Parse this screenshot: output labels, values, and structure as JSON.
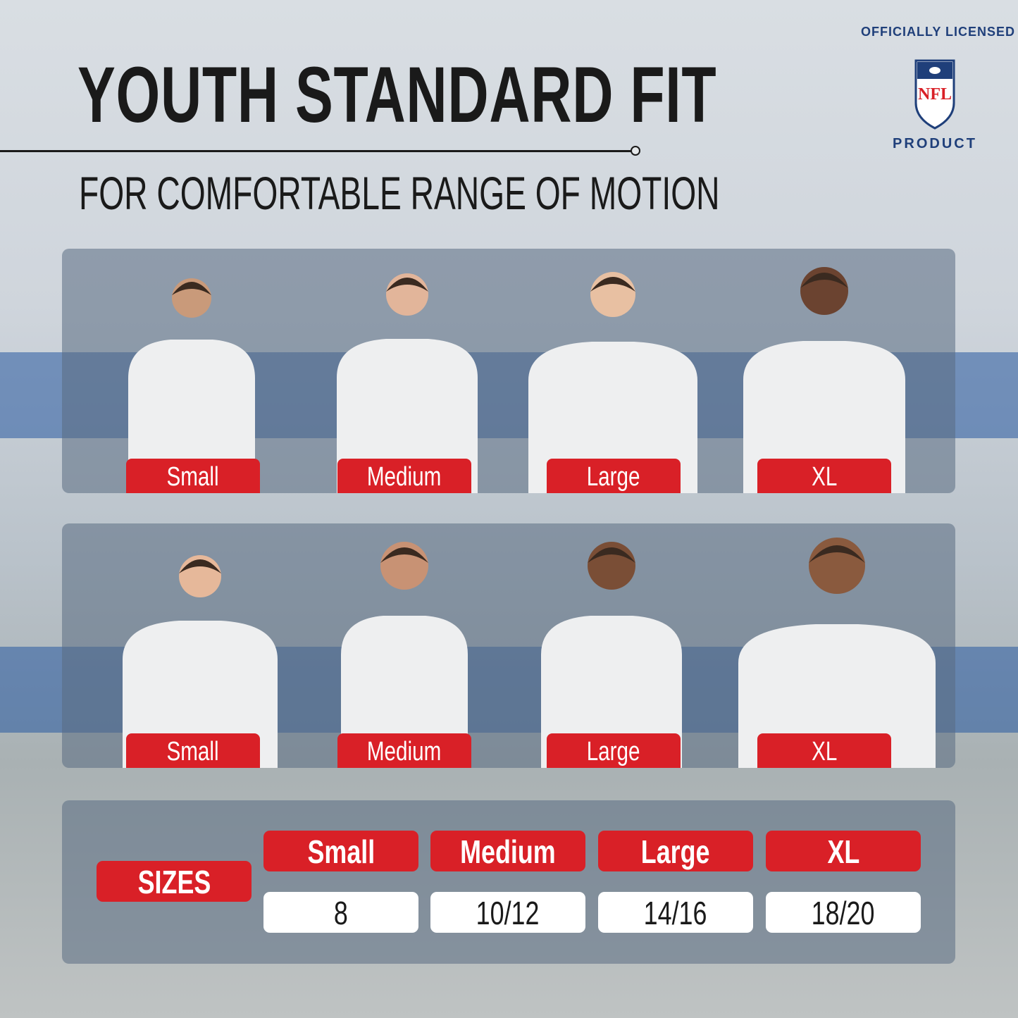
{
  "title": "YOUTH STANDARD FIT",
  "subtitle": "FOR COMFORTABLE RANGE OF MOTION",
  "badge": {
    "text_top": "OFFICIALLY LICENSED",
    "text_bottom": "PRODUCT",
    "logo": "NFL",
    "colors": {
      "navy": "#1f3f7a",
      "red": "#d92027"
    }
  },
  "rows": [
    {
      "labels": [
        "Small",
        "Medium",
        "Large",
        "XL"
      ]
    },
    {
      "labels": [
        "Small",
        "Medium",
        "Large",
        "XL"
      ]
    }
  ],
  "size_chart": {
    "row_label": "SIZES",
    "headers": [
      "Small",
      "Medium",
      "Large",
      "XL"
    ],
    "values": [
      "8",
      "10/12",
      "14/16",
      "18/20"
    ]
  },
  "colors": {
    "accent_red": "#d92027",
    "stripe_blue": "#2d5a9a"
  }
}
